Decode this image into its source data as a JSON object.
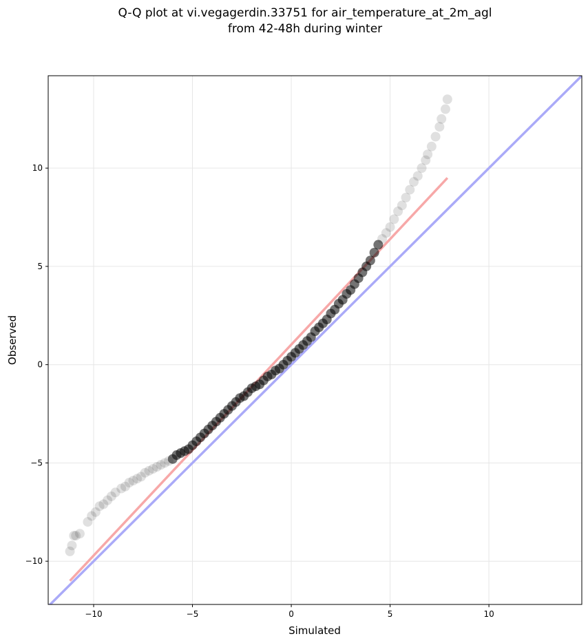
{
  "chart_data": {
    "type": "scatter",
    "title_line1": "Q-Q plot at vi.vegagerdin.33751 for air_temperature_at_2m_agl",
    "title_line2": "from 42-48h during winter",
    "xlabel": "Simulated",
    "ylabel": "Observed",
    "xlim": [
      -12.3,
      14.7
    ],
    "ylim": [
      -12.2,
      14.7
    ],
    "x_ticks": [
      -10,
      -5,
      0,
      5,
      10
    ],
    "y_ticks": [
      -10,
      -5,
      0,
      5,
      10
    ],
    "x_tick_labels": [
      "−10",
      "−5",
      "0",
      "5",
      "10"
    ],
    "y_tick_labels": [
      "−10",
      "−5",
      "0",
      "5",
      "10"
    ],
    "grid": true,
    "identity_line": {
      "color": "#aaaaf8",
      "x": [
        -12.3,
        14.7
      ],
      "y": [
        -12.3,
        14.7
      ]
    },
    "fit_line": {
      "color": "#f7a8a8",
      "x": [
        -11.2,
        7.9
      ],
      "y": [
        -11.0,
        9.5
      ]
    },
    "point_color": "#000000",
    "points": {
      "x": [
        -11.2,
        -11.1,
        -11.0,
        -10.9,
        -10.7,
        -10.3,
        -10.1,
        -9.9,
        -9.7,
        -9.5,
        -9.3,
        -9.1,
        -8.9,
        -8.6,
        -8.4,
        -8.2,
        -8.0,
        -7.8,
        -7.6,
        -7.4,
        -7.2,
        -7.0,
        -6.8,
        -6.6,
        -6.4,
        -6.2,
        -6.0,
        -5.8,
        -5.6,
        -5.4,
        -5.2,
        -5.0,
        -4.8,
        -4.6,
        -4.4,
        -4.2,
        -4.0,
        -3.8,
        -3.6,
        -3.4,
        -3.2,
        -3.0,
        -2.8,
        -2.6,
        -2.4,
        -2.2,
        -2.0,
        -1.8,
        -1.6,
        -1.4,
        -1.2,
        -1.0,
        -0.8,
        -0.6,
        -0.4,
        -0.2,
        0.0,
        0.2,
        0.4,
        0.6,
        0.8,
        1.0,
        1.2,
        1.4,
        1.6,
        1.8,
        2.0,
        2.2,
        2.4,
        2.6,
        2.8,
        3.0,
        3.2,
        3.4,
        3.6,
        3.8,
        4.0,
        4.2,
        4.4,
        4.6,
        4.8,
        5.0,
        5.2,
        5.4,
        5.6,
        5.8,
        6.0,
        6.2,
        6.4,
        6.6,
        6.8,
        6.9,
        7.1,
        7.3,
        7.5,
        7.6,
        7.8,
        7.9
      ],
      "y": [
        -9.5,
        -9.2,
        -8.7,
        -8.7,
        -8.6,
        -8.0,
        -7.7,
        -7.5,
        -7.2,
        -7.1,
        -6.9,
        -6.7,
        -6.5,
        -6.3,
        -6.2,
        -6.0,
        -5.9,
        -5.8,
        -5.7,
        -5.5,
        -5.4,
        -5.3,
        -5.2,
        -5.1,
        -5.0,
        -4.9,
        -4.8,
        -4.6,
        -4.5,
        -4.4,
        -4.3,
        -4.1,
        -3.9,
        -3.7,
        -3.5,
        -3.3,
        -3.1,
        -2.9,
        -2.7,
        -2.5,
        -2.3,
        -2.1,
        -1.9,
        -1.7,
        -1.6,
        -1.4,
        -1.2,
        -1.1,
        -1.0,
        -0.8,
        -0.6,
        -0.5,
        -0.3,
        -0.2,
        0.0,
        0.2,
        0.4,
        0.6,
        0.8,
        1.0,
        1.2,
        1.4,
        1.7,
        1.9,
        2.1,
        2.3,
        2.6,
        2.8,
        3.1,
        3.3,
        3.6,
        3.8,
        4.1,
        4.4,
        4.7,
        5.0,
        5.3,
        5.7,
        6.1,
        6.4,
        6.7,
        7.0,
        7.4,
        7.8,
        8.1,
        8.5,
        8.9,
        9.3,
        9.6,
        10.0,
        10.4,
        10.7,
        11.1,
        11.6,
        12.1,
        12.5,
        13.0,
        13.5
      ]
    }
  }
}
